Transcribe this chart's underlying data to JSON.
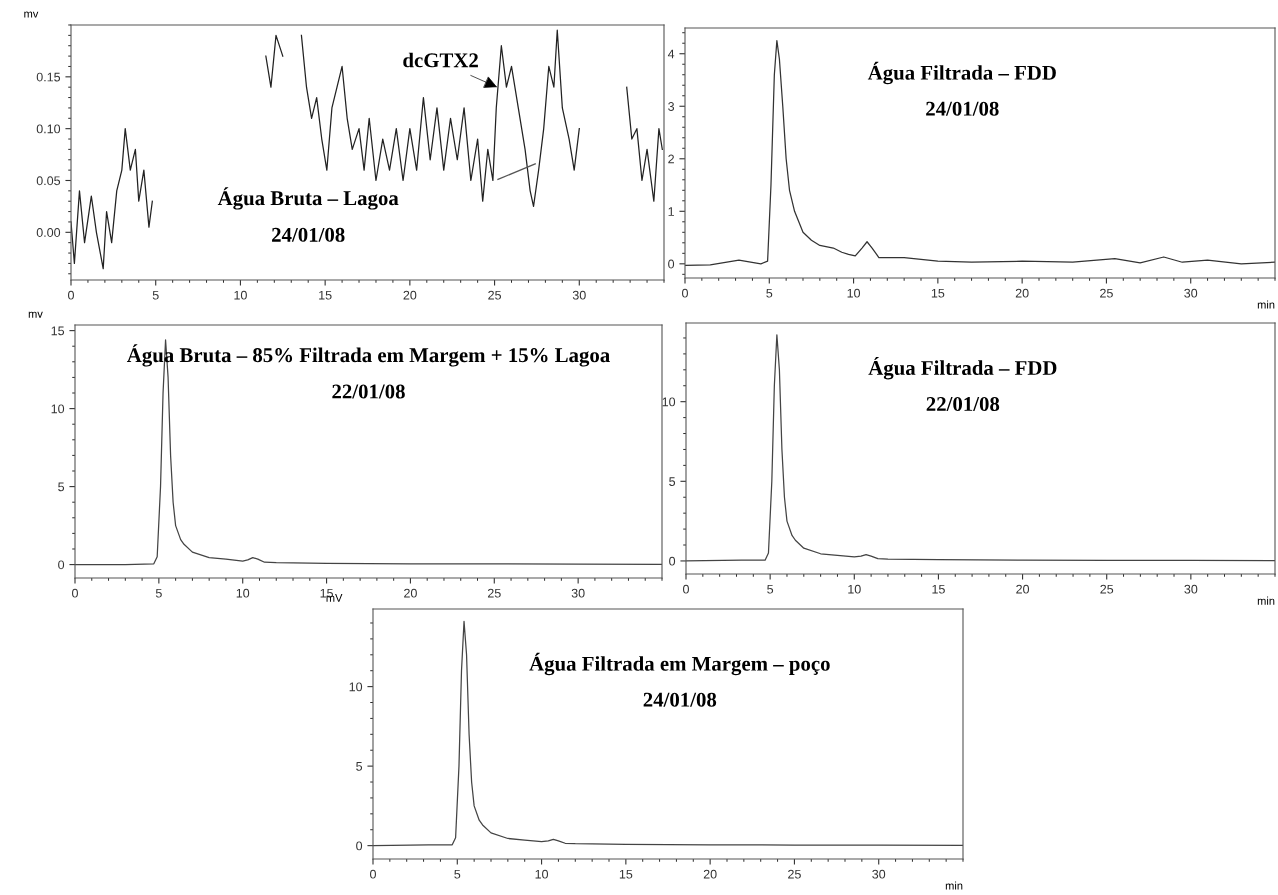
{
  "chart_data": [
    {
      "type": "line",
      "title": "Água Bruta – Lagoa",
      "subtitle": "24/01/08",
      "ylabel": "mv",
      "xlim": [
        0,
        35
      ],
      "ylim": [
        -0.046,
        0.2
      ],
      "xticks": [
        0,
        5,
        10,
        15,
        20,
        25,
        30
      ],
      "yticks": [
        {
          "value": 0,
          "label": "0.00"
        },
        {
          "value": 0.05,
          "label": "0.05"
        },
        {
          "value": 0.1,
          "label": "0.10"
        },
        {
          "value": 0.15,
          "label": "0.15"
        }
      ],
      "annotations": [
        {
          "text": "dcGTX2",
          "x": 25.3,
          "y": 0.139
        }
      ],
      "x": [
        0,
        0.2,
        0.5,
        0.8,
        1.2,
        1.5,
        1.9,
        2.1,
        2.4,
        2.7,
        3.0,
        3.2,
        3.5,
        3.8,
        4.0,
        4.3,
        4.6,
        4.8,
        4.85,
        8,
        11.3,
        11.5,
        11.8,
        12.1,
        12.5,
        13.0,
        13.2,
        13.6,
        13.9,
        14.2,
        14.5,
        14.8,
        15.1,
        15.4,
        15.7,
        16.0,
        16.3,
        16.6,
        17.0,
        17.3,
        17.6,
        18.0,
        18.4,
        18.8,
        19.2,
        19.6,
        20.0,
        20.4,
        20.8,
        21.2,
        21.6,
        22.0,
        22.4,
        22.8,
        23.2,
        23.6,
        24.0,
        24.3,
        24.6,
        24.9,
        25.1,
        25.4,
        25.7,
        26.0,
        26.4,
        26.8,
        27.1,
        27.3,
        27.6,
        27.9,
        28.2,
        28.5,
        28.7,
        29.0,
        29.4,
        29.7,
        30.0,
        30.3,
        31.5,
        32.5,
        32.8,
        33.1,
        33.4,
        33.7,
        34.0,
        34.4,
        34.7,
        34.9
      ],
      "series": [
        {
          "color": "#222222",
          "values": [
            0.01,
            -0.03,
            0.04,
            -0.01,
            0.035,
            0.0,
            -0.035,
            0.02,
            -0.01,
            0.04,
            0.06,
            0.1,
            0.06,
            0.08,
            0.03,
            0.06,
            0.005,
            0.03,
            null,
            null,
            null,
            0.17,
            0.14,
            0.19,
            0.17,
            null,
            null,
            0.19,
            0.14,
            0.11,
            0.13,
            0.09,
            0.06,
            0.12,
            0.14,
            0.16,
            0.11,
            0.08,
            0.1,
            0.06,
            0.11,
            0.05,
            0.09,
            0.06,
            0.1,
            0.05,
            0.1,
            0.06,
            0.13,
            0.07,
            0.12,
            0.06,
            0.11,
            0.07,
            0.12,
            0.05,
            0.09,
            0.03,
            0.08,
            0.05,
            0.12,
            0.18,
            0.14,
            0.16,
            0.12,
            0.08,
            0.04,
            0.025,
            0.06,
            0.1,
            0.16,
            0.14,
            0.195,
            0.12,
            0.09,
            0.06,
            0.1,
            null,
            null,
            null,
            0.14,
            0.09,
            0.1,
            0.05,
            0.08,
            0.03,
            0.1,
            0.08
          ]
        },
        {
          "type": "line",
          "color": "#555555",
          "x": [
            25.2,
            27.4
          ],
          "values": [
            0.051,
            0.066
          ]
        }
      ]
    },
    {
      "type": "line",
      "title": "Água Filtrada – FDD",
      "subtitle": "24/01/08",
      "xlabel": "min",
      "xlim": [
        0,
        35
      ],
      "ylim": [
        -0.27,
        4.49
      ],
      "xticks": [
        0,
        5,
        10,
        15,
        20,
        25,
        30
      ],
      "yticks": [
        0,
        1,
        2,
        3,
        4
      ],
      "x": [
        0,
        1.5,
        3.2,
        4.5,
        4.9,
        5.1,
        5.3,
        5.45,
        5.6,
        5.8,
        6.0,
        6.2,
        6.5,
        7.0,
        7.5,
        8.0,
        8.8,
        9.3,
        9.7,
        10.1,
        10.5,
        10.8,
        11.1,
        11.5,
        13.0,
        15.0,
        17.0,
        20.0,
        23.0,
        25.5,
        27.0,
        28.4,
        29.5,
        31.0,
        33.0,
        35.0
      ],
      "series": [
        {
          "color": "#333333",
          "values": [
            -0.03,
            -0.02,
            0.07,
            0.0,
            0.05,
            1.5,
            3.6,
            4.25,
            3.9,
            3.0,
            2.0,
            1.4,
            1.0,
            0.6,
            0.45,
            0.35,
            0.3,
            0.22,
            0.18,
            0.15,
            0.3,
            0.42,
            0.3,
            0.12,
            0.12,
            0.05,
            0.03,
            0.05,
            0.03,
            0.1,
            0.02,
            0.13,
            0.03,
            0.07,
            0.0,
            0.03
          ]
        }
      ]
    },
    {
      "type": "line",
      "title": "Água Bruta – 85% Filtrada em Margem + 15% Lagoa",
      "subtitle": "22/01/08",
      "ylabel": "mv",
      "xlim": [
        0,
        35
      ],
      "ylim": [
        -0.86,
        15.36
      ],
      "xticks": [
        0,
        5,
        10,
        15,
        20,
        25,
        30
      ],
      "yticks": [
        0,
        5,
        10,
        15
      ],
      "x": [
        0,
        3.0,
        4.7,
        4.9,
        5.1,
        5.25,
        5.4,
        5.55,
        5.7,
        5.85,
        6.0,
        6.3,
        6.5,
        7.0,
        8.0,
        9.0,
        10.0,
        10.3,
        10.6,
        10.9,
        11.3,
        12.0,
        15.0,
        20.0,
        25.0,
        30.0,
        35.0
      ],
      "series": [
        {
          "color": "#444444",
          "values": [
            0.0,
            0.0,
            0.05,
            0.5,
            5.0,
            11.0,
            14.4,
            12.0,
            7.0,
            4.0,
            2.5,
            1.6,
            1.3,
            0.8,
            0.45,
            0.35,
            0.22,
            0.3,
            0.45,
            0.35,
            0.15,
            0.12,
            0.08,
            0.05,
            0.04,
            0.03,
            0.02
          ]
        }
      ]
    },
    {
      "type": "line",
      "title": "Água Filtrada – FDD",
      "subtitle": "22/01/08",
      "xlabel": "min",
      "xlim": [
        0,
        35
      ],
      "ylim": [
        -0.82,
        14.94
      ],
      "xticks": [
        0,
        5,
        10,
        15,
        20,
        25,
        30
      ],
      "yticks": [
        0,
        5,
        10
      ],
      "x": [
        0,
        3.3,
        4.7,
        4.9,
        5.1,
        5.25,
        5.4,
        5.55,
        5.7,
        5.85,
        6.0,
        6.3,
        6.5,
        7.0,
        8.0,
        9.0,
        10.0,
        10.4,
        10.7,
        11.0,
        11.4,
        12.0,
        15.0,
        20.0,
        25.0,
        30.0,
        35.0
      ],
      "series": [
        {
          "color": "#444444",
          "values": [
            0.0,
            0.05,
            0.05,
            0.5,
            5.0,
            11.0,
            14.2,
            12.0,
            7.0,
            4.0,
            2.5,
            1.6,
            1.3,
            0.8,
            0.45,
            0.35,
            0.25,
            0.3,
            0.4,
            0.3,
            0.15,
            0.12,
            0.08,
            0.05,
            0.04,
            0.03,
            0.02
          ]
        }
      ]
    },
    {
      "type": "line",
      "title": "Água Filtrada em Margem – poço",
      "subtitle": "24/01/08",
      "ylabel": "mV",
      "xlabel": "min",
      "xlim": [
        0,
        35
      ],
      "ylim": [
        -0.84,
        14.88
      ],
      "xticks": [
        0,
        5,
        10,
        15,
        20,
        25,
        30
      ],
      "yticks": [
        0,
        5,
        10
      ],
      "x": [
        0,
        3.3,
        4.7,
        4.9,
        5.1,
        5.25,
        5.4,
        5.55,
        5.7,
        5.85,
        6.0,
        6.3,
        6.5,
        7.0,
        8.0,
        9.0,
        10.0,
        10.4,
        10.7,
        11.0,
        11.4,
        12.0,
        15.0,
        20.0,
        25.0,
        30.0,
        35.0
      ],
      "series": [
        {
          "color": "#444444",
          "values": [
            0.0,
            0.05,
            0.05,
            0.5,
            5.0,
            11.0,
            14.1,
            12.0,
            7.0,
            4.0,
            2.5,
            1.6,
            1.3,
            0.8,
            0.45,
            0.35,
            0.25,
            0.3,
            0.4,
            0.3,
            0.15,
            0.12,
            0.08,
            0.05,
            0.04,
            0.03,
            0.02
          ]
        }
      ]
    }
  ]
}
